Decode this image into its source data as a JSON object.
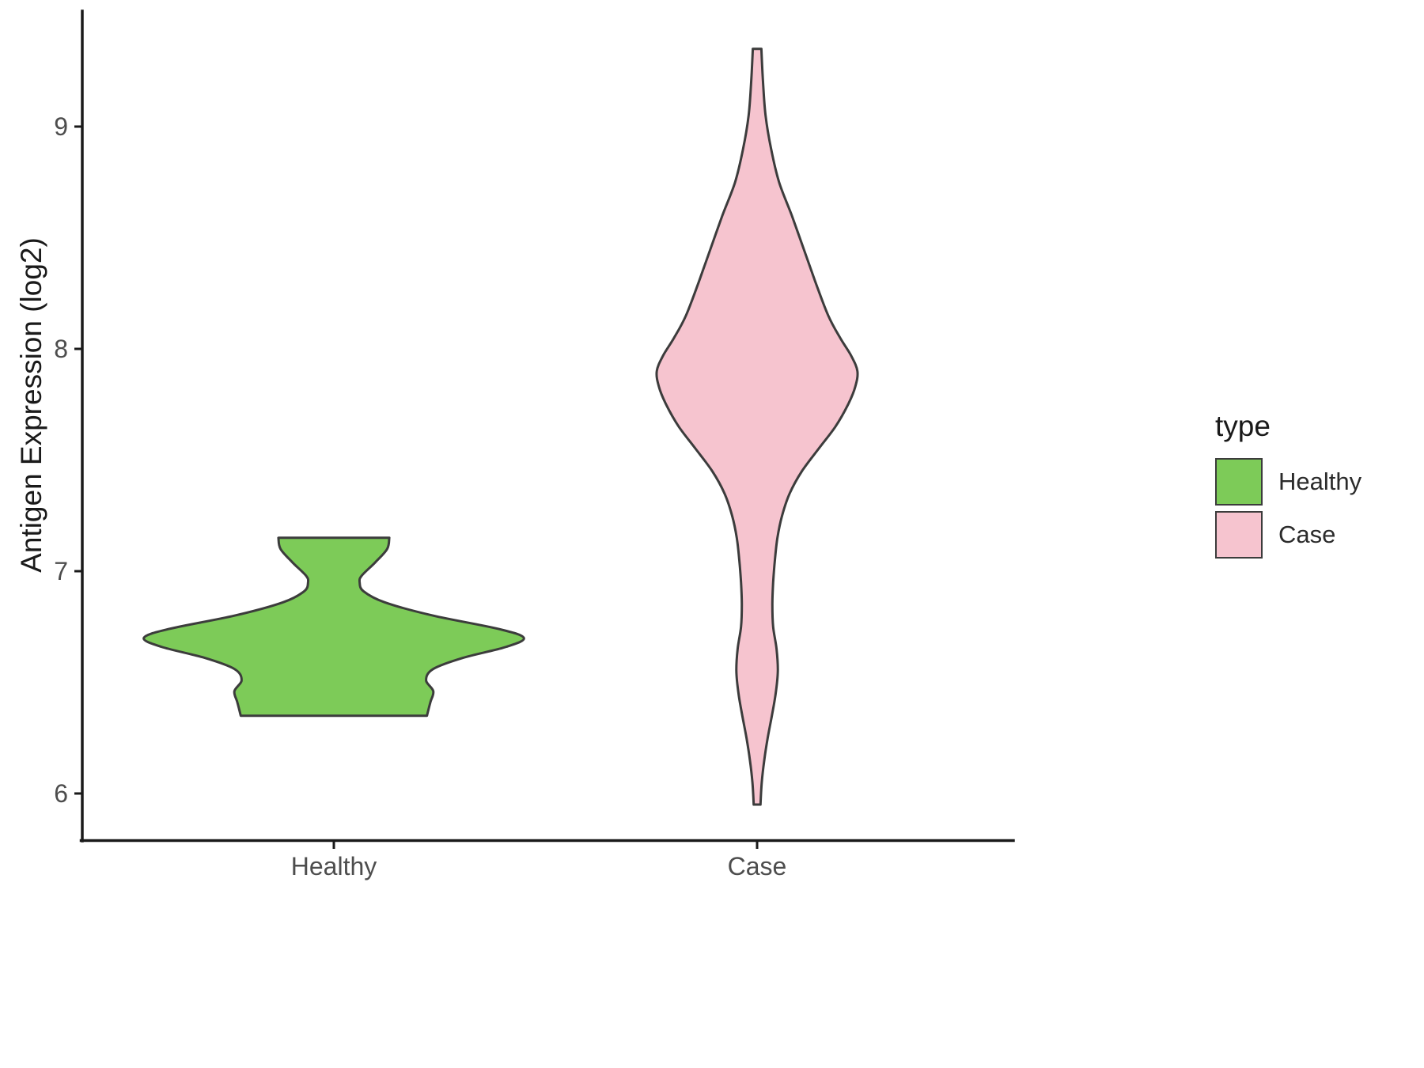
{
  "figure": {
    "y_axis": {
      "title": "Antigen Expression (log2)",
      "ticks": [
        6,
        7,
        8,
        9
      ]
    },
    "x_axis": {
      "categories": [
        "Healthy",
        "Case"
      ]
    },
    "legend": {
      "title": "type",
      "entries": [
        {
          "label": "Healthy",
          "color": "#7dcb58"
        },
        {
          "label": "Case",
          "color": "#f6c4cf"
        }
      ]
    }
  },
  "chart_data": {
    "type": "violin",
    "title": "",
    "xlabel": "",
    "ylabel": "Antigen Expression (log2)",
    "categories": [
      "Healthy",
      "Case"
    ],
    "y_ticks": [
      6,
      7,
      8,
      9
    ],
    "ylim": [
      5.7,
      9.55
    ],
    "grid": "off",
    "legend_position": "right",
    "axis_color": "#1a1a1a",
    "stroke_color": "#3c3c3c",
    "series": [
      {
        "name": "Healthy",
        "color": "#7dcb58",
        "range": [
          6.35,
          7.15
        ],
        "peak_density_at": 6.7,
        "profile": [
          [
            7.15,
            0.131
          ],
          [
            7.1,
            0.126
          ],
          [
            7.04,
            0.098
          ],
          [
            6.98,
            0.066
          ],
          [
            6.95,
            0.061
          ],
          [
            6.91,
            0.07
          ],
          [
            6.86,
            0.12
          ],
          [
            6.8,
            0.235
          ],
          [
            6.74,
            0.39
          ],
          [
            6.7,
            0.449
          ],
          [
            6.66,
            0.408
          ],
          [
            6.61,
            0.305
          ],
          [
            6.56,
            0.235
          ],
          [
            6.51,
            0.218
          ],
          [
            6.46,
            0.235
          ],
          [
            6.41,
            0.228
          ],
          [
            6.35,
            0.22
          ]
        ]
      },
      {
        "name": "Case",
        "color": "#f6c4cf",
        "range": [
          5.95,
          9.35
        ],
        "peak_density_at": 7.9,
        "profile": [
          [
            9.35,
            0.01
          ],
          [
            9.2,
            0.014
          ],
          [
            9.05,
            0.02
          ],
          [
            8.9,
            0.033
          ],
          [
            8.75,
            0.052
          ],
          [
            8.6,
            0.082
          ],
          [
            8.45,
            0.11
          ],
          [
            8.3,
            0.138
          ],
          [
            8.15,
            0.168
          ],
          [
            8.05,
            0.196
          ],
          [
            7.97,
            0.222
          ],
          [
            7.9,
            0.237
          ],
          [
            7.83,
            0.232
          ],
          [
            7.75,
            0.215
          ],
          [
            7.65,
            0.185
          ],
          [
            7.55,
            0.145
          ],
          [
            7.45,
            0.106
          ],
          [
            7.35,
            0.077
          ],
          [
            7.25,
            0.059
          ],
          [
            7.15,
            0.048
          ],
          [
            7.05,
            0.042
          ],
          [
            6.95,
            0.038
          ],
          [
            6.85,
            0.036
          ],
          [
            6.75,
            0.038
          ],
          [
            6.65,
            0.046
          ],
          [
            6.55,
            0.049
          ],
          [
            6.45,
            0.044
          ],
          [
            6.35,
            0.035
          ],
          [
            6.25,
            0.025
          ],
          [
            6.15,
            0.017
          ],
          [
            6.05,
            0.011
          ],
          [
            5.95,
            0.008
          ]
        ]
      }
    ]
  }
}
